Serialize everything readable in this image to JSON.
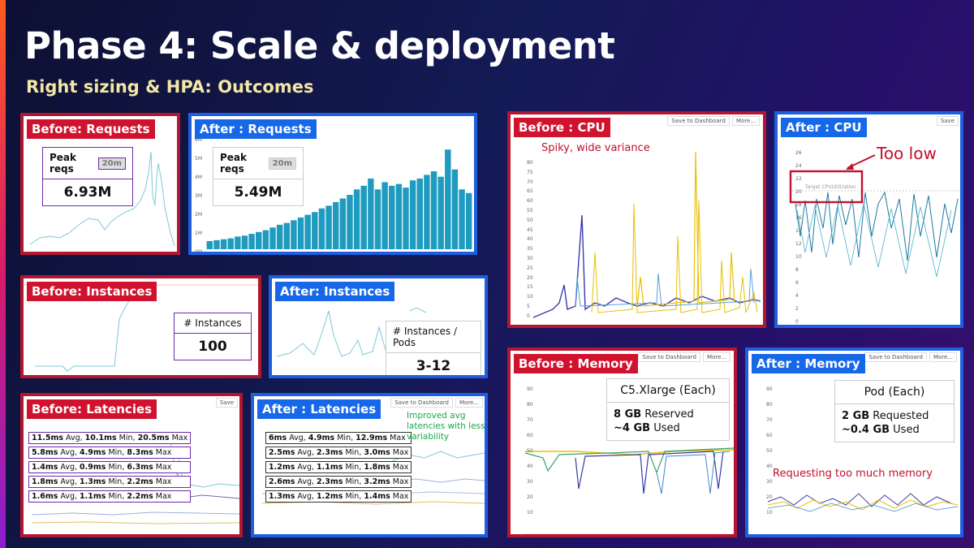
{
  "title": "Phase 4: Scale & deployment",
  "subtitle": "Right sizing & HPA: Outcomes",
  "toolbar": {
    "save": "Save to Dashboard",
    "more": "More...",
    "save_short": "Save"
  },
  "before_requests": {
    "tag": "Before: Requests",
    "stat_label": "Peak reqs",
    "window": "20m",
    "value": "6.93M"
  },
  "after_requests": {
    "tag": "After : Requests",
    "stat_label": "Peak reqs",
    "window": "20m",
    "value": "5.49M",
    "yticks": [
      "6M",
      "5M",
      "4M",
      "3M",
      "2M",
      "1M",
      "0M"
    ],
    "chart_data": {
      "type": "bar",
      "ylim": [
        0,
        6
      ],
      "values": [
        0.45,
        0.5,
        0.55,
        0.6,
        0.7,
        0.75,
        0.85,
        0.95,
        1.05,
        1.2,
        1.35,
        1.45,
        1.6,
        1.75,
        1.9,
        2.05,
        2.25,
        2.4,
        2.6,
        2.8,
        3.0,
        3.3,
        3.5,
        3.9,
        3.3,
        3.7,
        3.5,
        3.6,
        3.4,
        3.8,
        3.9,
        4.1,
        4.3,
        4.0,
        5.5,
        4.4,
        3.3,
        3.1
      ]
    }
  },
  "before_instances": {
    "tag": "Before: Instances",
    "stat_label": "# Instances",
    "value": "100"
  },
  "after_instances": {
    "tag": "After: Instances",
    "stat_label": "# Instances / Pods",
    "value": "3-12"
  },
  "before_latencies": {
    "tag": "Before: Latencies",
    "rows": [
      {
        "avg": "11.5ms",
        "min": "10.1ms",
        "max": "20.5ms"
      },
      {
        "avg": "5.8ms",
        "min": "4.9ms",
        "max": "8.3ms"
      },
      {
        "avg": "1.4ms",
        "min": "0.9ms",
        "max": "6.3ms"
      },
      {
        "avg": "1.8ms",
        "min": "1.3ms",
        "max": "2.2ms"
      },
      {
        "avg": "1.6ms",
        "min": "1.1ms",
        "max": "2.2ms"
      }
    ]
  },
  "after_latencies": {
    "tag": "After : Latencies",
    "note": "Improved avg latencies with less variability",
    "rows": [
      {
        "avg": "6ms",
        "min": "4.9ms",
        "max": "12.9ms"
      },
      {
        "avg": "2.5ms",
        "min": "2.3ms",
        "max": "3.0ms"
      },
      {
        "avg": "1.2ms",
        "min": "1.1ms",
        "max": "1.8ms"
      },
      {
        "avg": "2.6ms",
        "min": "2.3ms",
        "max": "3.2ms"
      },
      {
        "avg": "1.3ms",
        "min": "1.2ms",
        "max": "1.4ms"
      }
    ]
  },
  "before_cpu": {
    "tag": "Before : CPU",
    "note": "Spiky, wide variance",
    "yticks": [
      "80",
      "75",
      "70",
      "65",
      "60",
      "55",
      "50",
      "45",
      "40",
      "35",
      "30",
      "25",
      "20",
      "15",
      "10",
      "5",
      "0"
    ]
  },
  "after_cpu": {
    "tag": "After : CPU",
    "callout": "Too low",
    "target_label": "Target CPUUtilization",
    "yticks": [
      "26",
      "24",
      "22",
      "20",
      "18",
      "16",
      "14",
      "12",
      "10",
      "8",
      "6",
      "4",
      "2",
      "0"
    ]
  },
  "before_memory": {
    "tag": "Before : Memory",
    "instance": "C5.Xlarge",
    "each": "(Each)",
    "reserved_value": "8 GB",
    "reserved_label": "Reserved",
    "used_value": "~4 GB",
    "used_label": "Used",
    "yticks": [
      "90",
      "80",
      "70",
      "60",
      "50",
      "40",
      "30",
      "20",
      "10"
    ]
  },
  "after_memory": {
    "tag": "After : Memory",
    "unit": "Pod",
    "each": "(Each)",
    "requested_value": "2 GB",
    "requested_label": "Requested",
    "used_value": "~0.4 GB",
    "used_label": "Used",
    "note": "Requesting too much memory",
    "yticks": [
      "90",
      "80",
      "70",
      "60",
      "50",
      "40",
      "30",
      "20",
      "10"
    ]
  },
  "labels": {
    "avg": "Avg,",
    "min": "Min,",
    "max": "Max"
  },
  "colors": {
    "before_border": "#b41630",
    "after_border": "#1d5fe0",
    "chart_teal": "#1f9bbf",
    "note_red": "#c0122c",
    "note_green": "#19a84a"
  }
}
